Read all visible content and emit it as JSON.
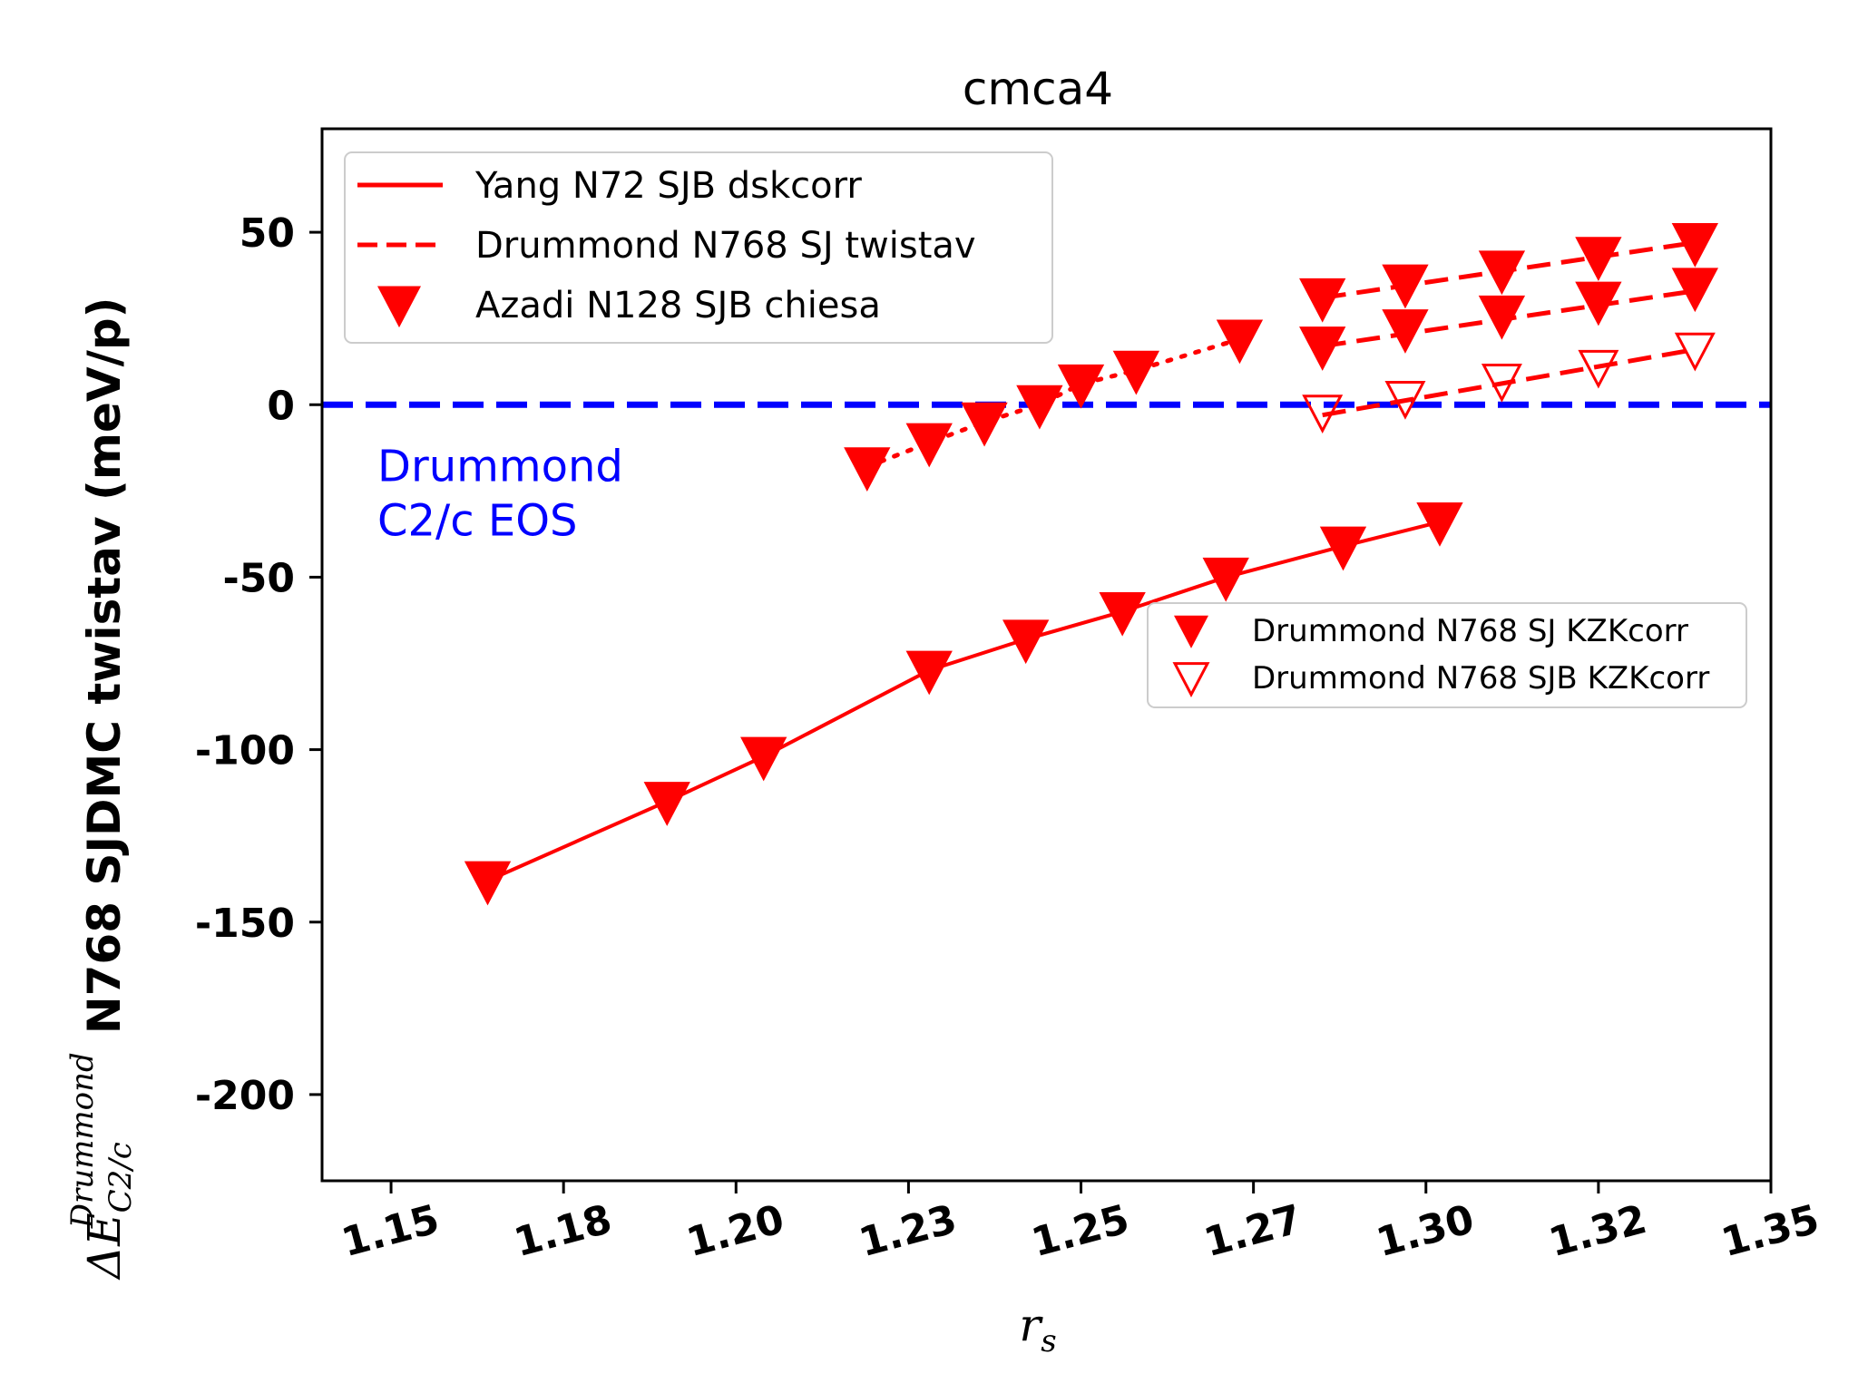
{
  "chart_data": {
    "type": "scatter",
    "title": "cmca4",
    "xlabel": "r_s",
    "ylabel_math": "ΔE",
    "ylabel_sup": "Drummond",
    "ylabel_sub": "C2/c",
    "ylabel_text": "N768 SJDMC twistav (meV/p)",
    "xlim": [
      1.14,
      1.35
    ],
    "ylim": [
      -225,
      80
    ],
    "xticks": [
      1.15,
      1.175,
      1.2,
      1.225,
      1.25,
      1.275,
      1.3,
      1.325,
      1.35
    ],
    "xtick_labels": [
      "1.15",
      "1.18",
      "1.20",
      "1.23",
      "1.25",
      "1.27",
      "1.30",
      "1.32",
      "1.35"
    ],
    "yticks": [
      50,
      0,
      -50,
      -100,
      -150,
      -200
    ],
    "ytick_labels": [
      "50",
      "0",
      "-50",
      "-100",
      "-150",
      "-200"
    ],
    "reference_line": {
      "y": 0,
      "color": "#0000ff",
      "style": "dashed"
    },
    "annotation": {
      "lines": [
        "Drummond",
        "C2/c EOS"
      ],
      "x": 1.1425,
      "y": -9,
      "color": "#0000ff"
    },
    "series_color": "#ff0000",
    "series": [
      {
        "name": "Yang N72 SJB dskcorr",
        "style": "solid",
        "marker": "filled-triangle-down",
        "x": [
          1.164,
          1.19,
          1.204,
          1.228,
          1.242,
          1.256,
          1.271,
          1.288,
          1.302
        ],
        "y": [
          -138,
          -115,
          -102,
          -77,
          -68,
          -60,
          -50,
          -41,
          -34
        ]
      },
      {
        "name": "Azadi N128 SJB chiesa",
        "style": "dotted",
        "marker": "filled-triangle-down",
        "x": [
          1.219,
          1.228,
          1.236,
          1.244,
          1.25,
          1.258,
          1.273
        ],
        "y": [
          -18,
          -11,
          -5,
          0,
          6,
          10,
          19
        ]
      },
      {
        "name": "Drummond N768 SJ twistav",
        "style": "dashed",
        "marker": "none",
        "lines": [
          {
            "x": [
              1.285,
              1.339
            ],
            "y": [
              31,
              47
            ]
          },
          {
            "x": [
              1.285,
              1.339
            ],
            "y": [
              17,
              33
            ]
          },
          {
            "x": [
              1.285,
              1.339
            ],
            "y": [
              -3,
              16
            ]
          }
        ]
      },
      {
        "name": "Drummond N768 SJ KZKcorr",
        "style": "none",
        "marker": "filled-triangle-down",
        "x": [
          1.285,
          1.297,
          1.311,
          1.325,
          1.339,
          1.285,
          1.297,
          1.311,
          1.325,
          1.339
        ],
        "y": [
          31,
          35,
          39,
          43,
          47,
          17,
          22,
          26,
          30,
          34
        ]
      },
      {
        "name": "Drummond N768 SJB KZKcorr",
        "style": "none",
        "marker": "open-triangle-down",
        "x": [
          1.285,
          1.297,
          1.311,
          1.325,
          1.339,
          1.285,
          1.297,
          1.311,
          1.325,
          1.339
        ],
        "y": [
          31,
          35,
          39,
          43,
          47,
          -2,
          2,
          7,
          11,
          16
        ]
      }
    ],
    "legend_main": {
      "placement": "upper-left",
      "entries": [
        "Yang N72 SJB dskcorr",
        "Drummond N768 SJ twistav",
        "Azadi N128 SJB chiesa"
      ]
    },
    "legend_secondary": {
      "placement": "center-right",
      "entries": [
        "Drummond N768 SJ KZKcorr",
        "Drummond N768 SJB KZKcorr"
      ]
    }
  }
}
